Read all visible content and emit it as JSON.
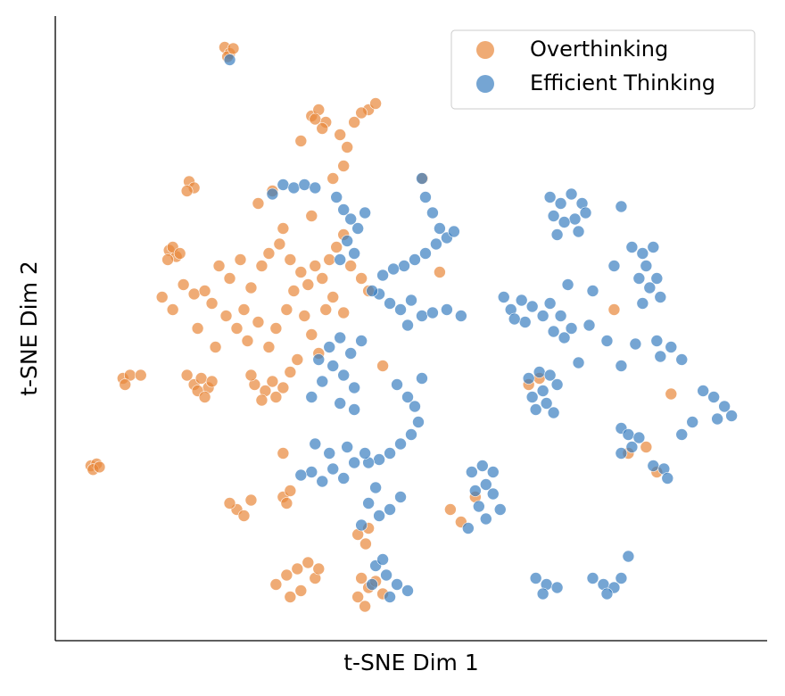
{
  "chart_data": {
    "type": "scatter",
    "x_label": "t-SNE Dim 1",
    "y_label": "t-SNE Dim 2",
    "xlim": [
      0,
      100
    ],
    "ylim": [
      0,
      100
    ],
    "legend": "upper right",
    "series": [
      {
        "name": "Overthinking",
        "color": "#e8873a",
        "x": [
          23.8,
          24.5,
          24.2,
          25,
          36,
          37,
          38,
          37.5,
          36.5,
          42,
          44,
          45,
          43,
          40,
          34.5,
          41,
          18.8,
          19.5,
          18.5,
          16,
          17,
          16.5,
          17.5,
          15.8,
          9.5,
          10.5,
          9.8,
          12,
          5,
          5.8,
          5.3,
          6.2,
          19.5,
          20.5,
          21.5,
          20,
          22,
          18.5,
          21,
          28,
          29.5,
          30.5,
          31,
          29,
          32,
          27.5,
          15,
          16.5,
          18,
          19.5,
          21,
          22,
          24,
          25.5,
          26.5,
          27,
          28.5,
          30,
          31,
          32.5,
          33.5,
          34.5,
          35.5,
          36.5,
          37.5,
          38.5,
          35,
          36,
          37,
          34,
          33,
          29,
          30,
          31.5,
          33,
          39.5,
          40.5,
          41.5,
          43,
          44,
          23,
          24.5,
          26,
          27.5,
          20,
          22.5,
          38,
          39,
          40.5,
          28.5,
          30.5,
          32,
          36,
          39,
          40.5,
          25.5,
          26.5,
          24.5,
          27.5,
          32,
          33,
          32.5,
          31,
          32.5,
          34,
          35.5,
          36.5,
          34.5,
          33,
          37,
          42.5,
          43.5,
          44,
          45,
          43,
          46,
          43.6,
          44,
          42.5,
          32,
          55.5,
          57,
          59,
          66.5,
          68,
          78.5,
          80.5,
          83,
          86.5,
          84.5,
          51.6,
          46,
          54
        ],
        "values": [
          95,
          94,
          93.5,
          94.8,
          84,
          85,
          83,
          82,
          83.5,
          83,
          85,
          86,
          84.5,
          81,
          80,
          79,
          73.5,
          72.5,
          72,
          62.5,
          61.5,
          63,
          62,
          61,
          42,
          42.5,
          41,
          42.5,
          28,
          28.3,
          27.4,
          27.8,
          41,
          42,
          40.5,
          40,
          41.5,
          42.5,
          39,
          41,
          40,
          41.5,
          39,
          38.5,
          40.5,
          42.5,
          55,
          53,
          57,
          55.5,
          56,
          54,
          52,
          50,
          53,
          48,
          51,
          47,
          50,
          53,
          56,
          59,
          57,
          60,
          58,
          61,
          52,
          49,
          46,
          45,
          43,
          60,
          62,
          63.5,
          61,
          63,
          65,
          60,
          58,
          56,
          60,
          58,
          61,
          56.5,
          50,
          47,
          53,
          55,
          52.5,
          70,
          72,
          66,
          68,
          74,
          76,
          21,
          20,
          22,
          22.5,
          23,
          24,
          22,
          9,
          10.5,
          11.5,
          12.5,
          10,
          8,
          7,
          11.5,
          7,
          5.5,
          8.5,
          9.5,
          10,
          7.5,
          15.5,
          18,
          17,
          30,
          21,
          19,
          23,
          41,
          42,
          53,
          30,
          31,
          39.5,
          27,
          74,
          44,
          59
        ]
      },
      {
        "name": "Efficient Thinking",
        "color": "#3a7fc1",
        "x": [
          24.5,
          32,
          33.5,
          35,
          36.5,
          30.5,
          39.5,
          40.5,
          41.5,
          42.5,
          43.5,
          41,
          42,
          40,
          51.5,
          52,
          53,
          54,
          55,
          56,
          53.5,
          52,
          50.5,
          49,
          47.5,
          46,
          45.5,
          47,
          48.5,
          50,
          51.5,
          53,
          55,
          49.5,
          44.5,
          37,
          38.5,
          40,
          41.5,
          43,
          39,
          40.5,
          42,
          37.5,
          36,
          40,
          42,
          48,
          49.5,
          50.5,
          51,
          50,
          48.5,
          47,
          45.5,
          44,
          51.5,
          36,
          37.5,
          39,
          40.5,
          42,
          43.5,
          38.5,
          41,
          36.5,
          34.5,
          44,
          45.5,
          47,
          48.5,
          43,
          45,
          45,
          46.5,
          48,
          49.5,
          47,
          44.5,
          46,
          69.5,
          71,
          72.5,
          74,
          73,
          71.5,
          70,
          73.5,
          70.5,
          74.5,
          79.5,
          81,
          82.5,
          84,
          83,
          82,
          83.5,
          84.5,
          85,
          82.5,
          78.5,
          75.5,
          72,
          64,
          65.5,
          67,
          68.5,
          66,
          64.5,
          69.5,
          71,
          72.5,
          71.5,
          70,
          66.5,
          68,
          69.5,
          70.5,
          68.5,
          67,
          69,
          70,
          67.5,
          58.5,
          60,
          61.5,
          60.5,
          59,
          61.5,
          59.5,
          60.5,
          62.5,
          58,
          67.5,
          69,
          70.5,
          68.5,
          75.5,
          77,
          78.5,
          79.5,
          77.5,
          80.5,
          79.5,
          80.5,
          82,
          81,
          79.5,
          84,
          85.5,
          86,
          91,
          92.5,
          94,
          95,
          93,
          89.5,
          88,
          85,
          86.5,
          88,
          84.5,
          81.5,
          77.5,
          75,
          73.5,
          79.5,
          57,
          63
        ],
        "values": [
          93,
          73,
          72.5,
          73,
          72.5,
          71.5,
          71,
          69,
          67.5,
          66,
          68.5,
          64,
          62,
          61,
          74,
          71,
          68.5,
          66,
          64.5,
          65.5,
          63.5,
          62,
          61,
          60,
          59.5,
          58.5,
          55.5,
          54,
          53,
          54.5,
          52,
          52.5,
          53,
          50.5,
          56,
          45,
          47,
          48.5,
          46,
          48,
          44,
          42.5,
          40.5,
          41.5,
          39,
          38,
          37,
          41,
          39,
          37.5,
          35,
          33,
          31.5,
          30,
          29,
          28.5,
          42,
          27,
          25.5,
          27.5,
          26,
          28.5,
          30,
          30,
          31,
          31.5,
          26.5,
          22,
          20,
          21,
          23,
          18.5,
          24.5,
          12,
          10.5,
          9,
          8,
          7,
          9,
          13,
          71,
          70,
          71.5,
          70,
          67.5,
          67,
          68,
          65.5,
          65,
          68.5,
          69.5,
          63,
          62,
          63,
          60,
          58,
          56.5,
          58,
          55,
          54,
          60,
          56,
          57,
          53,
          54.5,
          53.5,
          52,
          51,
          51.5,
          54,
          52,
          50,
          48.5,
          49.5,
          42,
          43,
          42.5,
          41,
          40,
          39,
          38,
          36.5,
          37,
          27,
          28,
          27,
          25,
          24,
          23.5,
          21.5,
          19.5,
          21,
          18,
          10,
          9,
          8.5,
          7.5,
          10,
          9,
          8.5,
          10,
          7.5,
          13.5,
          34,
          33,
          32.5,
          31,
          30,
          28,
          27.5,
          26,
          40,
          39,
          37.5,
          36,
          35.5,
          35,
          33,
          45.5,
          47,
          45,
          48,
          47.5,
          48,
          50.5,
          44.5,
          44,
          52,
          55
        ]
      }
    ]
  }
}
